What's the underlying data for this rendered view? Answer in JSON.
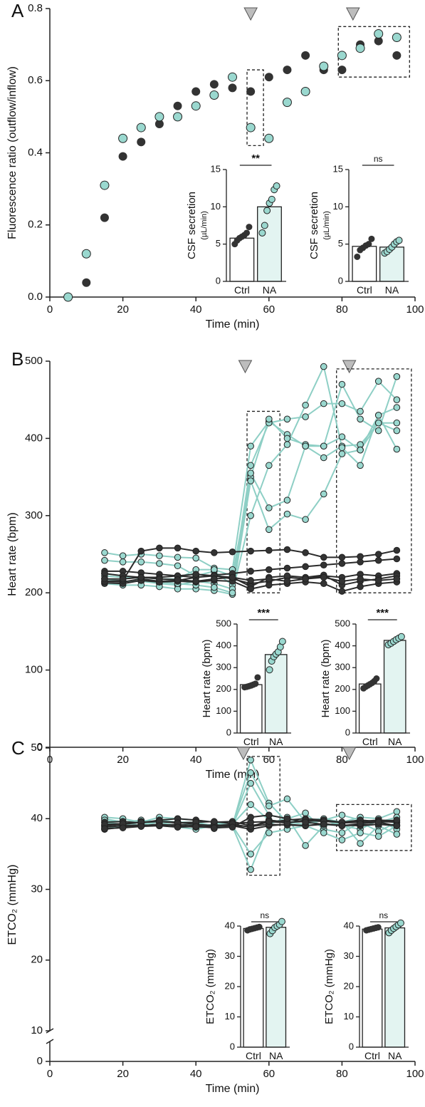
{
  "colors": {
    "ctrl": "#333333",
    "na": "#9ad8cf",
    "na_line": "#8ecfc5",
    "edge": "#222222"
  },
  "chart_data": [
    {
      "panel": "A",
      "type": "scatter",
      "xlabel": "Time (min)",
      "ylabel": "Fluorescence ratio (outflow/inflow)",
      "xlim": [
        0,
        100
      ],
      "ylim": [
        0,
        0.8
      ],
      "xticks": [
        "0",
        "20",
        "40",
        "60",
        "80",
        "100"
      ],
      "yticks": [
        "0.0",
        "0.2",
        "0.4",
        "0.6",
        "0.8"
      ],
      "arrows_at": [
        55,
        83
      ],
      "boxes": [
        [
          54,
          58.5,
          0.42,
          0.63
        ],
        [
          79,
          98.5,
          0.61,
          0.75
        ]
      ],
      "series": [
        {
          "group": "ctrl",
          "x": [
            5,
            10,
            15,
            20,
            25,
            30,
            35,
            40,
            45,
            50,
            55,
            60,
            65,
            70,
            75,
            80,
            85,
            90,
            95
          ],
          "y": [
            0.0,
            0.04,
            0.22,
            0.39,
            0.43,
            0.48,
            0.53,
            0.57,
            0.59,
            0.58,
            0.57,
            0.61,
            0.63,
            0.67,
            0.63,
            0.63,
            0.7,
            0.71,
            0.67
          ]
        },
        {
          "group": "na",
          "x": [
            5,
            10,
            15,
            20,
            25,
            30,
            35,
            40,
            45,
            50,
            55,
            60,
            65,
            70,
            75,
            80,
            85,
            90,
            95
          ],
          "y": [
            0.0,
            0.12,
            0.31,
            0.44,
            0.47,
            0.5,
            0.5,
            0.53,
            0.56,
            0.61,
            0.47,
            0.44,
            0.54,
            0.57,
            0.64,
            0.67,
            0.69,
            0.73,
            0.72
          ]
        }
      ],
      "insets": [
        {
          "ylabel": "CSF secretion",
          "ylabel_sub": "(µL/min)",
          "ylim": [
            0,
            15
          ],
          "yticks": [
            "0",
            "5",
            "10",
            "15"
          ],
          "categories": [
            "Ctrl",
            "NA"
          ],
          "values": [
            5.8,
            10.0
          ],
          "sig": "**",
          "points": [
            [
              5.0,
              5.5,
              5.8,
              6.0,
              6.2,
              6.5,
              7.3
            ],
            [
              6.5,
              7.5,
              9.5,
              10.5,
              11.0,
              12.3,
              12.8
            ]
          ]
        },
        {
          "ylabel": "CSF secretion",
          "ylabel_sub": "(µL/min)",
          "ylim": [
            0,
            15
          ],
          "yticks": [
            "0",
            "5",
            "10",
            "15"
          ],
          "categories": [
            "Ctrl",
            "NA"
          ],
          "values": [
            4.7,
            4.6
          ],
          "sig": "ns",
          "points": [
            [
              3.3,
              4.2,
              4.5,
              4.8,
              5.0,
              5.7
            ],
            [
              3.8,
              4.0,
              4.3,
              4.6,
              5.0,
              5.3,
              5.5
            ]
          ]
        }
      ]
    },
    {
      "panel": "B",
      "type": "line",
      "xlabel": "Time (min)",
      "ylabel": "Heart rate (bpm)",
      "xlim": [
        0,
        100
      ],
      "ylim": [
        0,
        500
      ],
      "xticks": [
        "0",
        "20",
        "40",
        "60",
        "80",
        "100"
      ],
      "yticks": [
        "0",
        "100",
        "200",
        "300",
        "400",
        "500"
      ],
      "arrows_at": [
        53.5,
        82
      ],
      "boxes": [
        [
          54,
          63,
          200,
          435
        ],
        [
          78.5,
          99,
          200,
          490
        ]
      ],
      "ctrl_lines": {
        "x": [
          15,
          20,
          25,
          30,
          35,
          40,
          45,
          50,
          55,
          60,
          65,
          70,
          75,
          80,
          85,
          90,
          95
        ],
        "y": [
          [
            228,
            228,
            226,
            224,
            222,
            220,
            223,
            225,
            228,
            230,
            232,
            234,
            236,
            238,
            240,
            242,
            244
          ],
          [
            215,
            214,
            218,
            215,
            216,
            220,
            222,
            218,
            212,
            215,
            220,
            218,
            222,
            220,
            224,
            222,
            225
          ],
          [
            225,
            222,
            220,
            220,
            222,
            224,
            222,
            220,
            208,
            220,
            222,
            220,
            223,
            210,
            215,
            218,
            222
          ],
          [
            213,
            212,
            216,
            214,
            215,
            214,
            216,
            215,
            205,
            210,
            212,
            214,
            212,
            202,
            208,
            212,
            214
          ],
          [
            215,
            216,
            254,
            258,
            258,
            254,
            252,
            253,
            254,
            255,
            256,
            252,
            246,
            246,
            247,
            250,
            255
          ],
          [
            218,
            218,
            220,
            218,
            217,
            215,
            218,
            220,
            216,
            218,
            215,
            218,
            220,
            215,
            218,
            216,
            218
          ]
        ]
      },
      "na_lines": {
        "x": [
          15,
          20,
          25,
          30,
          35,
          40,
          45,
          50,
          55,
          60,
          65,
          70,
          75,
          80,
          85,
          90,
          95
        ],
        "y": [
          [
            252,
            248,
            250,
            248,
            246,
            245,
            232,
            230,
            390,
            422,
            405,
            390,
            375,
            390,
            392,
            420,
            410
          ],
          [
            242,
            240,
            240,
            238,
            235,
            222,
            228,
            210,
            365,
            420,
            425,
            428,
            445,
            445,
            435,
            474,
            450
          ],
          [
            222,
            220,
            220,
            218,
            218,
            230,
            230,
            222,
            350,
            425,
            400,
            392,
            390,
            402,
            385,
            420,
            420
          ],
          [
            218,
            215,
            215,
            212,
            210,
            215,
            212,
            205,
            355,
            310,
            320,
            390,
            390,
            470,
            425,
            410,
            480
          ],
          [
            212,
            210,
            210,
            208,
            205,
            205,
            203,
            198,
            345,
            282,
            302,
            295,
            328,
            380,
            385,
            430,
            386
          ],
          [
            225,
            222,
            218,
            214,
            212,
            210,
            207,
            200,
            300,
            365,
            392,
            443,
            493,
            388,
            365,
            430,
            440
          ]
        ]
      },
      "insets": [
        {
          "ylabel": "Heart rate (bpm)",
          "ylim": [
            0,
            500
          ],
          "yticks": [
            "0",
            "100",
            "200",
            "300",
            "400",
            "500"
          ],
          "categories": [
            "Ctrl",
            "NA"
          ],
          "values": [
            222,
            360
          ],
          "sig": "***",
          "points": [
            [
              210,
              212,
              215,
              218,
              222,
              226,
              255
            ],
            [
              290,
              330,
              350,
              362,
              372,
              395,
              420
            ]
          ]
        },
        {
          "ylabel": "Heart rate (bpm)",
          "ylim": [
            0,
            500
          ],
          "yticks": [
            "0",
            "100",
            "200",
            "300",
            "400",
            "500"
          ],
          "categories": [
            "Ctrl",
            "NA"
          ],
          "values": [
            225,
            425
          ],
          "sig": "***",
          "points": [
            [
              205,
              212,
              218,
              224,
              230,
              238,
              250
            ],
            [
              405,
              412,
              420,
              428,
              435,
              442
            ]
          ]
        }
      ]
    },
    {
      "panel": "C",
      "type": "line",
      "xlabel": "Time (min)",
      "ylabel": "ETCO₂ (mmHg)",
      "xlim": [
        0,
        100
      ],
      "ylim": [
        0,
        50
      ],
      "axis_break": 10,
      "xticks": [
        "0",
        "20",
        "40",
        "60",
        "80",
        "100"
      ],
      "yticks": [
        "0",
        "10",
        "20",
        "30",
        "40",
        "50"
      ],
      "arrows_at": [
        53,
        82
      ],
      "boxes": [
        [
          54,
          63,
          32,
          48.8
        ],
        [
          78.5,
          99,
          35.5,
          42
        ]
      ],
      "ctrl_lines": {
        "x": [
          15,
          20,
          25,
          30,
          35,
          40,
          45,
          50,
          55,
          60,
          65,
          70,
          75,
          80,
          85,
          90,
          95
        ],
        "y": [
          [
            39.0,
            39.2,
            39.5,
            39.6,
            39.5,
            39.2,
            39.0,
            39.2,
            38.8,
            39.8,
            39.5,
            39.6,
            39.8,
            39.4,
            39.5,
            39.6,
            39.5
          ],
          [
            38.5,
            38.8,
            39.0,
            39.2,
            39.0,
            38.8,
            38.9,
            39.0,
            38.5,
            39.0,
            39.2,
            39.0,
            39.3,
            39.0,
            39.1,
            39.2,
            39.0
          ],
          [
            39.5,
            39.6,
            39.4,
            39.8,
            40.0,
            39.8,
            39.5,
            39.6,
            39.0,
            39.5,
            39.8,
            40.0,
            39.8,
            39.5,
            39.6,
            39.8,
            39.7
          ],
          [
            38.8,
            39.0,
            39.1,
            39.0,
            39.2,
            39.0,
            39.1,
            39.0,
            38.9,
            39.2,
            39.1,
            39.0,
            39.2,
            39.1,
            39.0,
            39.2,
            39.1
          ],
          [
            39.2,
            39.3,
            39.5,
            39.6,
            39.4,
            39.5,
            39.6,
            39.3,
            39.5,
            39.6,
            39.4,
            39.8,
            39.6,
            39.5,
            39.8,
            39.6,
            39.8
          ],
          [
            38.6,
            38.7,
            38.9,
            39.0,
            38.8,
            38.9,
            38.7,
            38.8,
            40.2,
            40.5,
            40.0,
            39.5,
            39.2,
            39.0,
            39.3,
            39.5,
            39.0
          ]
        ]
      },
      "na_lines": {
        "x": [
          15,
          20,
          25,
          30,
          35,
          40,
          45,
          50,
          55,
          60,
          65,
          70,
          75,
          80,
          85,
          90,
          95
        ],
        "y": [
          [
            40.0,
            39.5,
            39.8,
            39.5,
            39.0,
            39.2,
            38.8,
            39.0,
            48.3,
            42.2,
            39.5,
            39.8,
            40.0,
            39.5,
            40.2,
            40.0,
            41.0
          ],
          [
            39.5,
            39.2,
            39.5,
            39.0,
            39.2,
            39.0,
            39.2,
            39.2,
            46.5,
            41.8,
            42.8,
            39.5,
            39.8,
            40.5,
            39.8,
            39.5,
            40.2
          ],
          [
            39.0,
            38.8,
            39.2,
            39.5,
            39.0,
            39.5,
            38.6,
            39.0,
            45.0,
            40.5,
            40.0,
            40.8,
            38.5,
            38.0,
            39.5,
            38.2,
            39.5
          ],
          [
            38.5,
            39.0,
            39.6,
            39.0,
            38.8,
            38.5,
            39.0,
            39.2,
            42.0,
            39.8,
            39.5,
            39.2,
            39.8,
            39.0,
            38.5,
            39.8,
            38.5
          ],
          [
            40.2,
            40.0,
            39.5,
            40.2,
            40.0,
            39.8,
            39.5,
            39.0,
            35.0,
            38.0,
            38.5,
            39.0,
            38.0,
            37.0,
            38.0,
            37.5,
            39.0
          ],
          [
            39.8,
            39.6,
            39.0,
            39.8,
            39.5,
            39.5,
            39.0,
            38.9,
            32.8,
            39.2,
            40.2,
            36.2,
            39.0,
            39.5,
            36.5,
            39.0,
            37.8
          ]
        ]
      },
      "insets": [
        {
          "ylabel": "ETCO₂ (mmHg)",
          "ylim": [
            0,
            40
          ],
          "yticks": [
            "0",
            "10",
            "20",
            "30",
            "40"
          ],
          "categories": [
            "Ctrl",
            "NA"
          ],
          "values": [
            39.2,
            39.6
          ],
          "sig": "ns",
          "points": [
            [
              38.6,
              38.9,
              39.1,
              39.3,
              39.5,
              39.7
            ],
            [
              37.5,
              38.5,
              39.5,
              40.0,
              40.5,
              41.5
            ]
          ]
        },
        {
          "ylabel": "ETCO₂ (mmHg)",
          "ylim": [
            0,
            40
          ],
          "yticks": [
            "0",
            "10",
            "20",
            "30",
            "40"
          ],
          "categories": [
            "Ctrl",
            "NA"
          ],
          "values": [
            39.0,
            39.4
          ],
          "sig": "ns",
          "points": [
            [
              38.6,
              38.8,
              39.0,
              39.2,
              39.4,
              39.6
            ],
            [
              37.8,
              38.6,
              39.2,
              39.8,
              40.4,
              41.0
            ]
          ]
        }
      ]
    }
  ]
}
